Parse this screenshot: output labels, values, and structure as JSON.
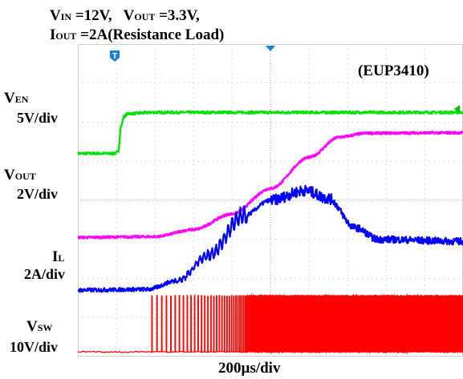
{
  "header": {
    "line1": [
      {
        "main": "V",
        "sub": "IN",
        "rest": " =12V,"
      },
      {
        "main": "V",
        "sub": "OUT",
        "rest": " =3.3V,"
      }
    ],
    "line2": {
      "main": "I",
      "sub": "OUT",
      "rest": " =2A(Resistance Load)"
    }
  },
  "part_label": "(EUP3410)",
  "timebase": "200µs/div",
  "chart_data": {
    "type": "line",
    "title": "",
    "x": {
      "divisions": 10,
      "per_division_us": 200
    },
    "y": {
      "divisions": 8
    },
    "grid": true,
    "series": [
      {
        "name_main": "V",
        "name_sub": "EN",
        "scale": "5V/div",
        "color": "#00e000",
        "points": [
          [
            0,
            5.2
          ],
          [
            0.95,
            5.2
          ],
          [
            1.05,
            5.25
          ],
          [
            1.12,
            5.9
          ],
          [
            1.2,
            6.15
          ],
          [
            1.3,
            6.22
          ],
          [
            2,
            6.25
          ],
          [
            10,
            6.25
          ]
        ],
        "noise": 0.03
      },
      {
        "name_main": "V",
        "name_sub": "OUT",
        "scale": "2V/div",
        "color": "#ff00ff",
        "points": [
          [
            0,
            3.05
          ],
          [
            2,
            3.07
          ],
          [
            3,
            3.25
          ],
          [
            4,
            3.65
          ],
          [
            5,
            4.3
          ],
          [
            6,
            5.1
          ],
          [
            6.8,
            5.62
          ],
          [
            7.5,
            5.72
          ],
          [
            10,
            5.73
          ]
        ],
        "noise": 0.03
      },
      {
        "name_main": "I",
        "name_sub": "L",
        "scale": "2A/div",
        "color": "#0000ff",
        "points": [
          [
            0,
            1.7
          ],
          [
            1.8,
            1.72
          ],
          [
            2.6,
            1.95
          ],
          [
            3.4,
            2.6
          ],
          [
            4.3,
            3.6
          ],
          [
            5,
            4.0
          ],
          [
            5.9,
            4.25
          ],
          [
            6.5,
            4.05
          ],
          [
            7.2,
            3.3
          ],
          [
            7.8,
            3.0
          ],
          [
            10,
            2.95
          ]
        ],
        "noise": 0.05
      },
      {
        "name_main": "V",
        "name_sub": "SW",
        "scale": "10V/div",
        "color": "#ff0000",
        "baseline": 0.12,
        "high": 1.55,
        "pulse_start_div": 1.9,
        "dense_start_div": 4.35
      }
    ]
  }
}
